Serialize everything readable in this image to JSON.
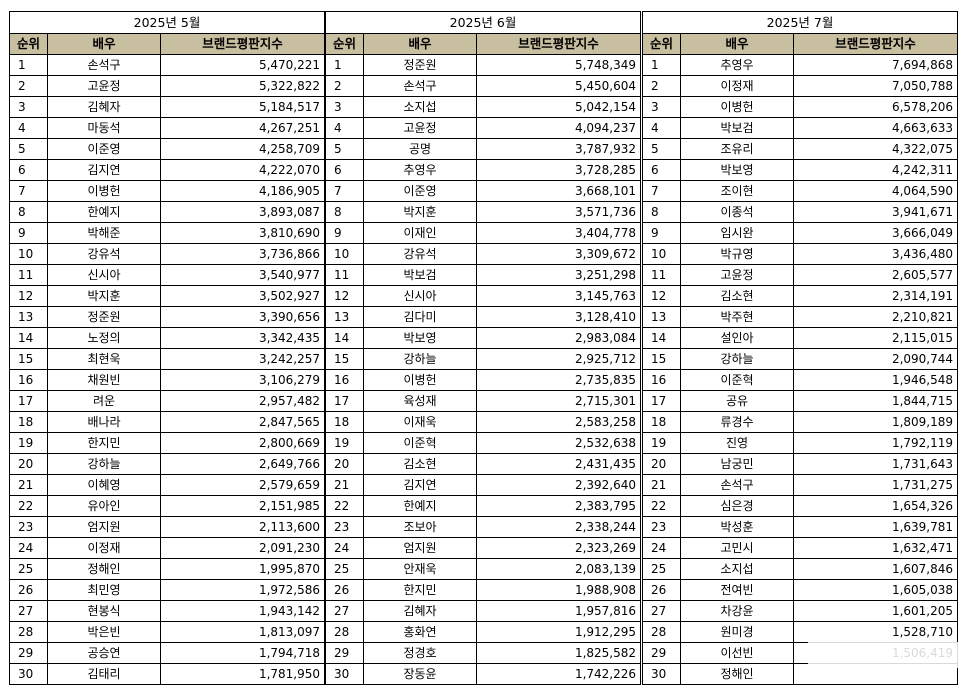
{
  "headers": {
    "rank": "순위",
    "actor": "배우",
    "score": "브랜드평판지수"
  },
  "months": [
    {
      "title": "2025년 5월",
      "rows": [
        {
          "rank": "1",
          "name": "손석구",
          "score": "5,470,221"
        },
        {
          "rank": "2",
          "name": "고윤정",
          "score": "5,322,822"
        },
        {
          "rank": "3",
          "name": "김혜자",
          "score": "5,184,517"
        },
        {
          "rank": "4",
          "name": "마동석",
          "score": "4,267,251"
        },
        {
          "rank": "5",
          "name": "이준영",
          "score": "4,258,709"
        },
        {
          "rank": "6",
          "name": "김지연",
          "score": "4,222,070"
        },
        {
          "rank": "7",
          "name": "이병헌",
          "score": "4,186,905"
        },
        {
          "rank": "8",
          "name": "한예지",
          "score": "3,893,087"
        },
        {
          "rank": "9",
          "name": "박해준",
          "score": "3,810,690"
        },
        {
          "rank": "10",
          "name": "강유석",
          "score": "3,736,866"
        },
        {
          "rank": "11",
          "name": "신시아",
          "score": "3,540,977"
        },
        {
          "rank": "12",
          "name": "박지훈",
          "score": "3,502,927"
        },
        {
          "rank": "13",
          "name": "정준원",
          "score": "3,390,656"
        },
        {
          "rank": "14",
          "name": "노정의",
          "score": "3,342,435"
        },
        {
          "rank": "15",
          "name": "최현욱",
          "score": "3,242,257"
        },
        {
          "rank": "16",
          "name": "채원빈",
          "score": "3,106,279"
        },
        {
          "rank": "17",
          "name": "려운",
          "score": "2,957,482"
        },
        {
          "rank": "18",
          "name": "배나라",
          "score": "2,847,565"
        },
        {
          "rank": "19",
          "name": "한지민",
          "score": "2,800,669"
        },
        {
          "rank": "20",
          "name": "강하늘",
          "score": "2,649,766"
        },
        {
          "rank": "21",
          "name": "이혜영",
          "score": "2,579,659"
        },
        {
          "rank": "22",
          "name": "유아인",
          "score": "2,151,985"
        },
        {
          "rank": "23",
          "name": "엄지원",
          "score": "2,113,600"
        },
        {
          "rank": "24",
          "name": "이정재",
          "score": "2,091,230"
        },
        {
          "rank": "25",
          "name": "정해인",
          "score": "1,995,870"
        },
        {
          "rank": "26",
          "name": "최민영",
          "score": "1,972,586"
        },
        {
          "rank": "27",
          "name": "현봉식",
          "score": "1,943,142"
        },
        {
          "rank": "28",
          "name": "박은빈",
          "score": "1,813,097"
        },
        {
          "rank": "29",
          "name": "공승연",
          "score": "1,794,718"
        },
        {
          "rank": "30",
          "name": "김태리",
          "score": "1,781,950"
        }
      ]
    },
    {
      "title": "2025년 6월",
      "rows": [
        {
          "rank": "1",
          "name": "정준원",
          "score": "5,748,349"
        },
        {
          "rank": "2",
          "name": "손석구",
          "score": "5,450,604"
        },
        {
          "rank": "3",
          "name": "소지섭",
          "score": "5,042,154"
        },
        {
          "rank": "4",
          "name": "고윤정",
          "score": "4,094,237"
        },
        {
          "rank": "5",
          "name": "공명",
          "score": "3,787,932"
        },
        {
          "rank": "6",
          "name": "추영우",
          "score": "3,728,285"
        },
        {
          "rank": "7",
          "name": "이준영",
          "score": "3,668,101"
        },
        {
          "rank": "8",
          "name": "박지훈",
          "score": "3,571,736"
        },
        {
          "rank": "9",
          "name": "이재인",
          "score": "3,404,778"
        },
        {
          "rank": "10",
          "name": "강유석",
          "score": "3,309,672"
        },
        {
          "rank": "11",
          "name": "박보검",
          "score": "3,251,298"
        },
        {
          "rank": "12",
          "name": "신시아",
          "score": "3,145,763"
        },
        {
          "rank": "13",
          "name": "김다미",
          "score": "3,128,410"
        },
        {
          "rank": "14",
          "name": "박보영",
          "score": "2,983,084"
        },
        {
          "rank": "15",
          "name": "강하늘",
          "score": "2,925,712"
        },
        {
          "rank": "16",
          "name": "이병헌",
          "score": "2,735,835"
        },
        {
          "rank": "17",
          "name": "육성재",
          "score": "2,715,301"
        },
        {
          "rank": "18",
          "name": "이재욱",
          "score": "2,583,258"
        },
        {
          "rank": "19",
          "name": "이준혁",
          "score": "2,532,638"
        },
        {
          "rank": "20",
          "name": "김소현",
          "score": "2,431,435"
        },
        {
          "rank": "21",
          "name": "김지연",
          "score": "2,392,640"
        },
        {
          "rank": "22",
          "name": "한예지",
          "score": "2,383,795"
        },
        {
          "rank": "23",
          "name": "조보아",
          "score": "2,338,244"
        },
        {
          "rank": "24",
          "name": "엄지원",
          "score": "2,323,269"
        },
        {
          "rank": "25",
          "name": "안재욱",
          "score": "2,083,139"
        },
        {
          "rank": "26",
          "name": "한지민",
          "score": "1,988,908"
        },
        {
          "rank": "27",
          "name": "김혜자",
          "score": "1,957,816"
        },
        {
          "rank": "28",
          "name": "홍화연",
          "score": "1,912,295"
        },
        {
          "rank": "29",
          "name": "정경호",
          "score": "1,825,582"
        },
        {
          "rank": "30",
          "name": "장동윤",
          "score": "1,742,226"
        }
      ]
    },
    {
      "title": "2025년 7월",
      "rows": [
        {
          "rank": "1",
          "name": "추영우",
          "score": "7,694,868"
        },
        {
          "rank": "2",
          "name": "이정재",
          "score": "7,050,788"
        },
        {
          "rank": "3",
          "name": "이병헌",
          "score": "6,578,206"
        },
        {
          "rank": "4",
          "name": "박보검",
          "score": "4,663,633"
        },
        {
          "rank": "5",
          "name": "조유리",
          "score": "4,322,075"
        },
        {
          "rank": "6",
          "name": "박보영",
          "score": "4,242,311"
        },
        {
          "rank": "7",
          "name": "조이현",
          "score": "4,064,590"
        },
        {
          "rank": "8",
          "name": "이종석",
          "score": "3,941,671"
        },
        {
          "rank": "9",
          "name": "임시완",
          "score": "3,666,049"
        },
        {
          "rank": "10",
          "name": "박규영",
          "score": "3,436,480"
        },
        {
          "rank": "11",
          "name": "고윤정",
          "score": "2,605,577"
        },
        {
          "rank": "12",
          "name": "김소현",
          "score": "2,314,191"
        },
        {
          "rank": "13",
          "name": "박주현",
          "score": "2,210,821"
        },
        {
          "rank": "14",
          "name": "설인아",
          "score": "2,115,015"
        },
        {
          "rank": "15",
          "name": "강하늘",
          "score": "2,090,744"
        },
        {
          "rank": "16",
          "name": "이준혁",
          "score": "1,946,548"
        },
        {
          "rank": "17",
          "name": "공유",
          "score": "1,844,715"
        },
        {
          "rank": "18",
          "name": "류경수",
          "score": "1,809,189"
        },
        {
          "rank": "19",
          "name": "진영",
          "score": "1,792,119"
        },
        {
          "rank": "20",
          "name": "남궁민",
          "score": "1,731,643"
        },
        {
          "rank": "21",
          "name": "손석구",
          "score": "1,731,275"
        },
        {
          "rank": "22",
          "name": "심은경",
          "score": "1,654,326"
        },
        {
          "rank": "23",
          "name": "박성훈",
          "score": "1,639,781"
        },
        {
          "rank": "24",
          "name": "고민시",
          "score": "1,632,471"
        },
        {
          "rank": "25",
          "name": "소지섭",
          "score": "1,607,846"
        },
        {
          "rank": "26",
          "name": "전여빈",
          "score": "1,605,038"
        },
        {
          "rank": "27",
          "name": "차강윤",
          "score": "1,601,205"
        },
        {
          "rank": "28",
          "name": "원미경",
          "score": "1,528,710"
        },
        {
          "rank": "29",
          "name": "이선빈",
          "score": "1,506,419"
        },
        {
          "rank": "30",
          "name": "정해인",
          "score": ""
        }
      ]
    }
  ]
}
